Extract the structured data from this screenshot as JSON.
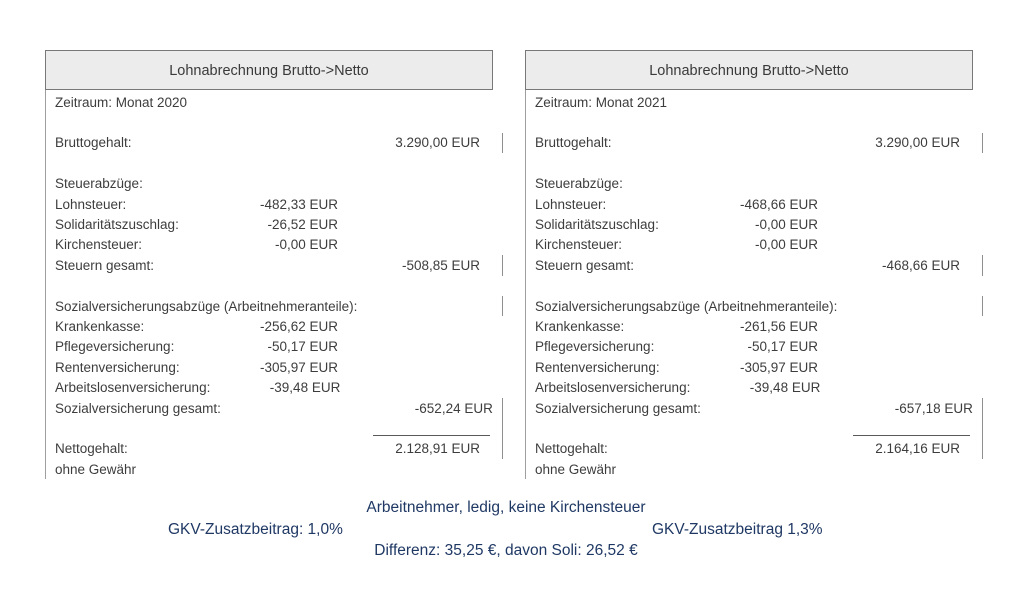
{
  "panels": [
    {
      "title": "Lohnabrechnung Brutto->Netto",
      "period": "Zeitraum: Monat 2020",
      "rows": [
        {
          "label": "Bruttogehalt:",
          "right": "3.290,00 EUR"
        },
        {
          "label": "Steuerabzüge:"
        },
        {
          "label": "Lohnsteuer:",
          "mid": "-482,33 EUR"
        },
        {
          "label": "Solidaritätszuschlag:",
          "mid": "-26,52 EUR"
        },
        {
          "label": "Kirchensteuer:",
          "mid": "-0,00 EUR"
        },
        {
          "label": "Steuern gesamt:",
          "right": "-508,85 EUR"
        },
        {
          "label": "Sozialversicherungsabzüge (Arbeitnehmeranteile):"
        },
        {
          "label": "Krankenkasse:",
          "mid": "-256,62 EUR"
        },
        {
          "label": "Pflegeversicherung:",
          "mid": "-50,17 EUR"
        },
        {
          "label": "Rentenversicherung:",
          "mid": "-305,97 EUR"
        },
        {
          "label": "Arbeitslosenversicherung:",
          "mid": "-39,48 EUR"
        },
        {
          "label": "Sozialversicherung gesamt:",
          "right": "-652,24 EUR"
        },
        {
          "label": "Nettogehalt:",
          "right": "2.128,91 EUR"
        },
        {
          "label": "ohne Gewähr"
        }
      ]
    },
    {
      "title": "Lohnabrechnung Brutto->Netto",
      "period": "Zeitraum: Monat 2021",
      "rows": [
        {
          "label": "Bruttogehalt:",
          "right": "3.290,00 EUR"
        },
        {
          "label": "Steuerabzüge:"
        },
        {
          "label": "Lohnsteuer:",
          "mid": "-468,66 EUR"
        },
        {
          "label": "Solidaritätszuschlag:",
          "mid": "-0,00 EUR"
        },
        {
          "label": "Kirchensteuer:",
          "mid": "-0,00 EUR"
        },
        {
          "label": "Steuern gesamt:",
          "right": "-468,66 EUR"
        },
        {
          "label": "Sozialversicherungsabzüge (Arbeitnehmeranteile):"
        },
        {
          "label": "Krankenkasse:",
          "mid": "-261,56 EUR"
        },
        {
          "label": "Pflegeversicherung:",
          "mid": "-50,17 EUR"
        },
        {
          "label": "Rentenversicherung:",
          "mid": "-305,97 EUR"
        },
        {
          "label": "Arbeitslosenversicherung:",
          "mid": "-39,48 EUR"
        },
        {
          "label": "Sozialversicherung gesamt:",
          "right": "-657,18 EUR"
        },
        {
          "label": "Nettogehalt:",
          "right": "2.164,16 EUR"
        },
        {
          "label": "ohne Gewähr"
        }
      ]
    }
  ],
  "footer": {
    "line1": "Arbeitnehmer, ledig, keine Kirchensteuer",
    "gkv_left": "GKV-Zusatzbeitrag: 1,0%",
    "gkv_right": "GKV-Zusatzbeitrag 1,3%",
    "line3": "Differenz: 35,25 €, davon Soli: 26,52 €"
  },
  "colors": {
    "footer_text": "#1f3864",
    "body_text": "#3d3d3d",
    "header_fill": "#ececec",
    "border_grey": "#8f8f8f"
  }
}
